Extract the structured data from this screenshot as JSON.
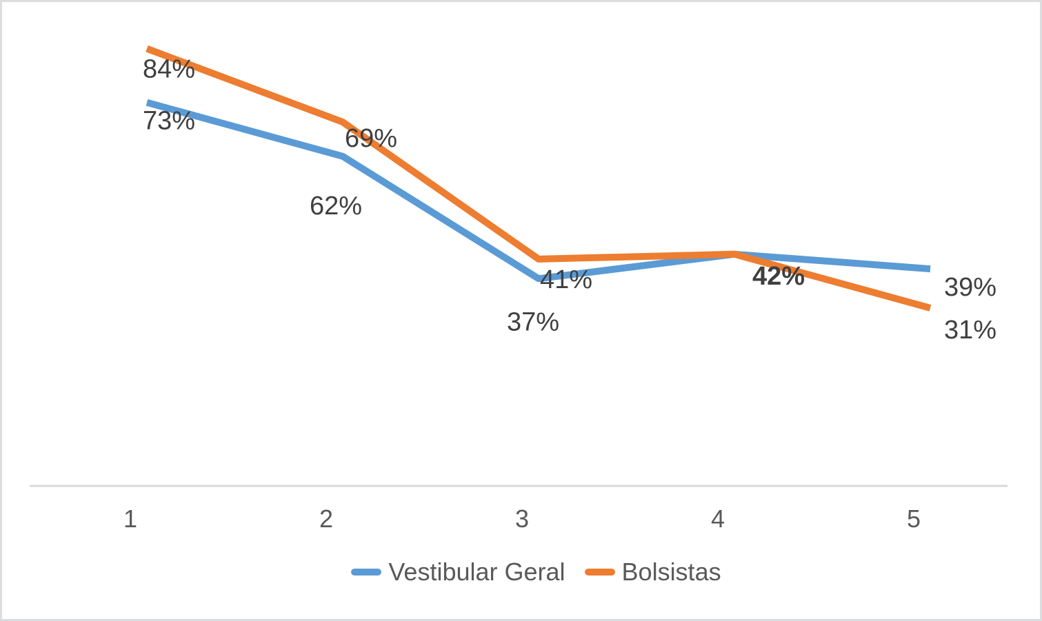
{
  "chart_data": {
    "type": "line",
    "title": "",
    "xlabel": "",
    "ylabel": "",
    "categories": [
      "1",
      "2",
      "3",
      "4",
      "5"
    ],
    "series": [
      {
        "name": "Vestibular Geral",
        "color": "#5B9BD5",
        "values": [
          73,
          62,
          37,
          42,
          39
        ],
        "labels": [
          "73%",
          "62%",
          "37%",
          "42%",
          "39%"
        ]
      },
      {
        "name": "Bolsistas",
        "color": "#ED7D31",
        "values": [
          84,
          69,
          41,
          42,
          31
        ],
        "labels": [
          "84%",
          "69%",
          "41%",
          "42%",
          "31%"
        ]
      }
    ],
    "value_format": "percent",
    "ylim": [
      0,
      90
    ],
    "grid": false,
    "legend_position": "bottom",
    "colors": {
      "data_label": "#3F3F3F",
      "tick_label": "#595959",
      "legend_text": "#595959",
      "axis_line": "#D9D9D9",
      "background": "#FFFFFF",
      "frame_border": "#DBDDDF"
    }
  }
}
